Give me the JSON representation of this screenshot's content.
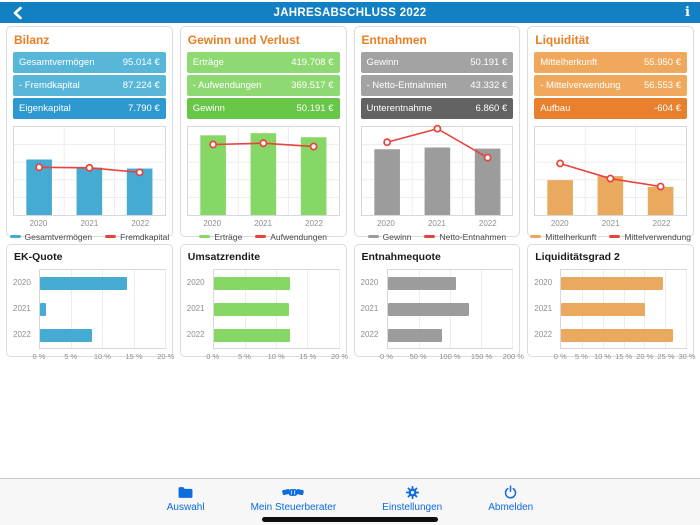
{
  "nav": {
    "title": "JAHRESABSCHLUSS 2022",
    "back_icon": "chevron-left",
    "info_icon": "i"
  },
  "colors": {
    "nav_bar": "#1380c4",
    "section_title": "#e87e23",
    "line": "#e8443b",
    "tab_tint": "#0c6ce0",
    "card_border": "#dcdcdc"
  },
  "columns": [
    {
      "title": "Bilanz",
      "theme": {
        "light": "#58b7d9",
        "dark": "#2d99d0",
        "bar": "#45abd2"
      },
      "rows": [
        {
          "label": "Gesamtvermögen",
          "value": "95.014 €",
          "tone": "light"
        },
        {
          "label": "- Fremdkapital",
          "value": "87.224 €",
          "tone": "light"
        },
        {
          "label": "Eigenkapital",
          "value": "7.790 €",
          "tone": "dark"
        }
      ],
      "combo_chart": {
        "type": "bar+line",
        "categories": [
          "2020",
          "2021",
          "2022"
        ],
        "bar_series": {
          "name": "Gesamtvermögen",
          "values": [
            113500,
            97000,
            95014
          ]
        },
        "line_series": {
          "name": "Fremdkapital",
          "values": [
            97600,
            96500,
            87224
          ]
        },
        "ymax": 180000
      },
      "ratio_chart": {
        "type": "bar-horizontal",
        "title": "EK-Quote",
        "categories": [
          "2020",
          "2021",
          "2022"
        ],
        "values": [
          14,
          1,
          8.3
        ],
        "xmax": 20,
        "ticks": [
          "0 %",
          "5 %",
          "10 %",
          "15 %",
          "20 %"
        ]
      }
    },
    {
      "title": "Gewinn und Verlust",
      "theme": {
        "light": "#8fd973",
        "dark": "#68c746",
        "bar": "#86d765"
      },
      "rows": [
        {
          "label": "Erträge",
          "value": "419.708 €",
          "tone": "light"
        },
        {
          "label": "- Aufwendungen",
          "value": "369.517 €",
          "tone": "light"
        },
        {
          "label": "Gewinn",
          "value": "50.191 €",
          "tone": "dark"
        }
      ],
      "combo_chart": {
        "type": "bar+line",
        "categories": [
          "2020",
          "2021",
          "2022"
        ],
        "bar_series": {
          "name": "Erträge",
          "values": [
            430000,
            441500,
            419708
          ]
        },
        "line_series": {
          "name": "Aufwendungen",
          "values": [
            380500,
            387500,
            369517
          ]
        },
        "ymax": 475000
      },
      "ratio_chart": {
        "type": "bar-horizontal",
        "title": "Umsatzrendite",
        "categories": [
          "2020",
          "2021",
          "2022"
        ],
        "values": [
          12.2,
          12.0,
          12.2
        ],
        "xmax": 20,
        "ticks": [
          "0 %",
          "5 %",
          "10 %",
          "15 %",
          "20 %"
        ]
      }
    },
    {
      "title": "Entnahmen",
      "theme": {
        "light": "#a3a3a3",
        "dark": "#636363",
        "bar": "#9c9c9c"
      },
      "rows": [
        {
          "label": "Gewinn",
          "value": "50.191 €",
          "tone": "light"
        },
        {
          "label": "- Netto-Entnahmen",
          "value": "43.332 €",
          "tone": "light"
        },
        {
          "label": "Unterentnahme",
          "value": "6.860 €",
          "tone": "dark"
        }
      ],
      "combo_chart": {
        "type": "bar+line",
        "categories": [
          "2020",
          "2021",
          "2022"
        ],
        "bar_series": {
          "name": "Gewinn",
          "values": [
            49700,
            51000,
            50191
          ]
        },
        "line_series": {
          "name": "Netto-Entnahmen",
          "values": [
            55000,
            65200,
            43332
          ]
        },
        "ymax": 66500
      },
      "ratio_chart": {
        "type": "bar-horizontal",
        "title": "Entnahmequote",
        "categories": [
          "2020",
          "2021",
          "2022"
        ],
        "values": [
          110,
          130,
          87
        ],
        "xmax": 200,
        "ticks": [
          "0 %",
          "50 %",
          "100 %",
          "150 %",
          "200 %"
        ]
      }
    },
    {
      "title": "Liquidität",
      "theme": {
        "light": "#f0a85c",
        "dark": "#e8802e",
        "bar": "#e9a95f"
      },
      "rows": [
        {
          "label": "Mittelherkunft",
          "value": "55.950 €",
          "tone": "light"
        },
        {
          "label": "- Mittelverwendung",
          "value": "56.553 €",
          "tone": "light"
        },
        {
          "label": "Aufbau",
          "value": "-604 €",
          "tone": "dark"
        }
      ],
      "combo_chart": {
        "type": "bar+line",
        "categories": [
          "2020",
          "2021",
          "2022"
        ],
        "bar_series": {
          "name": "Mittelherkunft",
          "values": [
            69300,
            77300,
            55950
          ]
        },
        "line_series": {
          "name": "Mittelverwendung",
          "values": [
            102500,
            72500,
            56553
          ]
        },
        "ymax": 175000
      },
      "ratio_chart": {
        "type": "bar-horizontal",
        "title": "Liquiditätsgrad 2",
        "categories": [
          "2020",
          "2021",
          "2022"
        ],
        "values": [
          24.5,
          20.2,
          26.9
        ],
        "xmax": 30,
        "ticks": [
          "0 %",
          "5 %",
          "10 %",
          "15 %",
          "20 %",
          "25 %",
          "30 %"
        ]
      }
    }
  ],
  "tabbar": {
    "items": [
      {
        "label": "Auswahl",
        "icon": "folder-icon"
      },
      {
        "label": "Mein Steuerberater",
        "icon": "handshake-icon"
      },
      {
        "label": "Einstellungen",
        "icon": "gear-icon"
      },
      {
        "label": "Abmelden",
        "icon": "power-icon"
      }
    ]
  }
}
